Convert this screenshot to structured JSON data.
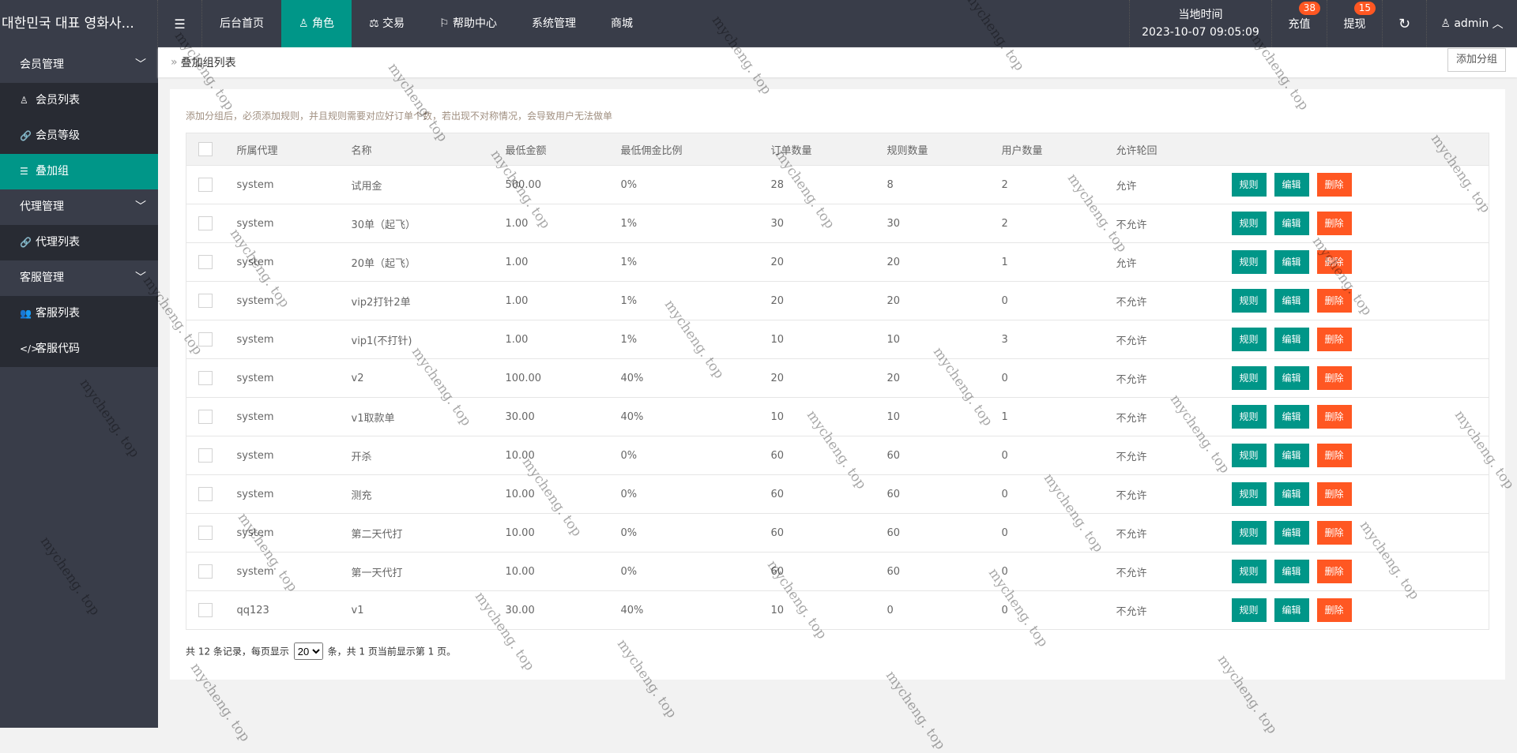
{
  "app": {
    "title": "대한민국 대표 영화사..."
  },
  "topnav": [
    {
      "label": "后台首页",
      "icon": ""
    },
    {
      "label": "角色",
      "icon": "user-icon",
      "active": true
    },
    {
      "label": "交易",
      "icon": "scale-icon"
    },
    {
      "label": "帮助中心",
      "icon": "flag-icon"
    },
    {
      "label": "系统管理",
      "icon": ""
    },
    {
      "label": "商城",
      "icon": ""
    }
  ],
  "header": {
    "time_label": "当地时间",
    "time_value": "2023-10-07 09:05:09",
    "recharge": "充值",
    "recharge_count": "38",
    "withdraw": "提现",
    "withdraw_count": "15",
    "user": "admin"
  },
  "sidebar": [
    {
      "label": "会员管理",
      "type": "section"
    },
    {
      "label": "会员列表",
      "type": "item",
      "icon": "user-icon",
      "ic": "♙"
    },
    {
      "label": "会员等级",
      "type": "item",
      "icon": "link-icon",
      "ic": "🔗"
    },
    {
      "label": "叠加组",
      "type": "item",
      "icon": "list-icon",
      "ic": "☰",
      "active": true
    },
    {
      "label": "代理管理",
      "type": "section"
    },
    {
      "label": "代理列表",
      "type": "item",
      "icon": "link-icon",
      "ic": "🔗"
    },
    {
      "label": "客服管理",
      "type": "section"
    },
    {
      "label": "客服列表",
      "type": "item",
      "icon": "users-icon",
      "ic": "👥"
    },
    {
      "label": "客服代码",
      "type": "item",
      "icon": "code-icon",
      "ic": "</>"
    }
  ],
  "breadcrumb": {
    "title": "叠加组列表",
    "add_button": "添加分组"
  },
  "notice": "添加分组后，必须添加规则，并且规则需要对应好订单个数，若出现不对称情况，会导致用户无法做单",
  "table": {
    "columns": [
      "所属代理",
      "名称",
      "最低金额",
      "最低佣金比例",
      "订单数量",
      "规则数量",
      "用户数量",
      "允许轮回"
    ],
    "actions": {
      "rules": "规则",
      "edit": "编辑",
      "delete": "删除"
    },
    "rows": [
      [
        "system",
        "试用金",
        "500.00",
        "0%",
        "28",
        "8",
        "2",
        "允许"
      ],
      [
        "system",
        "30单（起飞）",
        "1.00",
        "1%",
        "30",
        "30",
        "2",
        "不允许"
      ],
      [
        "system",
        "20单（起飞）",
        "1.00",
        "1%",
        "20",
        "20",
        "1",
        "允许"
      ],
      [
        "system",
        "vip2打针2单",
        "1.00",
        "1%",
        "20",
        "20",
        "0",
        "不允许"
      ],
      [
        "system",
        "vip1(不打针)",
        "1.00",
        "1%",
        "10",
        "10",
        "3",
        "不允许"
      ],
      [
        "system",
        "v2",
        "100.00",
        "40%",
        "20",
        "20",
        "0",
        "不允许"
      ],
      [
        "system",
        "v1取款单",
        "30.00",
        "40%",
        "10",
        "10",
        "1",
        "不允许"
      ],
      [
        "system",
        "开杀",
        "10.00",
        "0%",
        "60",
        "60",
        "0",
        "不允许"
      ],
      [
        "system",
        "测充",
        "10.00",
        "0%",
        "60",
        "60",
        "0",
        "不允许"
      ],
      [
        "system",
        "第二天代打",
        "10.00",
        "0%",
        "60",
        "60",
        "0",
        "不允许"
      ],
      [
        "system",
        "第一天代打",
        "10.00",
        "0%",
        "60",
        "60",
        "0",
        "不允许"
      ],
      [
        "qq123",
        "v1",
        "30.00",
        "40%",
        "10",
        "0",
        "0",
        "不允许"
      ]
    ]
  },
  "pagination": {
    "prefix": "共 12 条记录，每页显示",
    "page_size": "20",
    "suffix": "条，共 1 页当前显示第 1 页。"
  },
  "watermark": "mycheng. top",
  "colors": {
    "topbar": "#393D49",
    "accent": "#009688",
    "danger": "#FF5722"
  }
}
